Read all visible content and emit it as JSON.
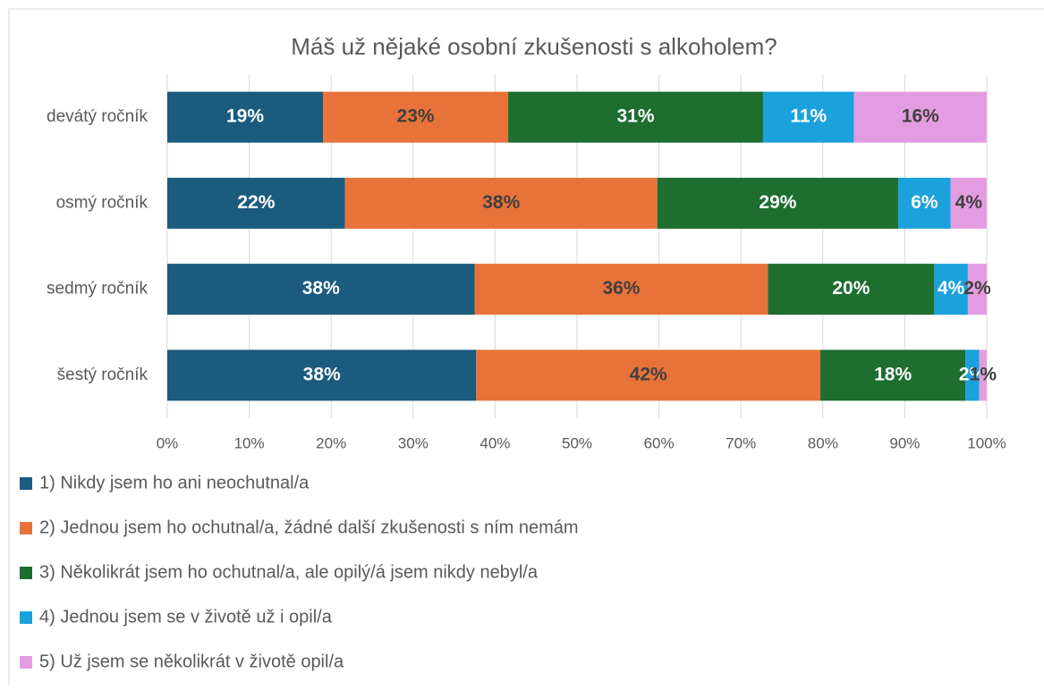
{
  "chart_data": {
    "type": "stacked_bar_horizontal",
    "title": "Máš už nějaké osobní zkušenosti s alkoholem?",
    "categories": [
      "devátý ročník",
      "osmý ročník",
      "sedmý ročník",
      "šestý ročník"
    ],
    "series": [
      {
        "name": "1) Nikdy jsem ho ani neochutnal/a",
        "color": "#1b5b7e",
        "label_color": "#ffffff",
        "values": [
          19.0,
          21.7,
          37.5,
          37.7
        ],
        "value_labels": [
          "19%",
          "22%",
          "38%",
          "38%"
        ]
      },
      {
        "name": "2) Jednou jsem ho ochutnal/a, žádné další zkušenosti s ním nemám",
        "color": "#e8733a",
        "label_color": "#404040",
        "values": [
          22.6,
          38.1,
          35.8,
          42.0
        ],
        "value_labels": [
          "23%",
          "38%",
          "36%",
          "42%"
        ]
      },
      {
        "name": "3) Několikrát jsem ho ochutnal/a, ale opilý/á jsem nikdy nebyl/a",
        "color": "#1d6e2f",
        "label_color": "#ffffff",
        "values": [
          31.1,
          29.4,
          20.3,
          17.7
        ],
        "value_labels": [
          "31%",
          "29%",
          "20%",
          "18%"
        ]
      },
      {
        "name": "4) Jednou jsem se v životě už i opil/a",
        "color": "#1ba1dc",
        "label_color": "#ffffff",
        "values": [
          11.1,
          6.4,
          4.1,
          1.7
        ],
        "value_labels": [
          "11%",
          "6%",
          "4%",
          "2%"
        ]
      },
      {
        "name": "5) Už jsem se několikrát v životě opil/a",
        "color": "#e49ce0",
        "label_color": "#404040",
        "values": [
          16.2,
          4.4,
          2.3,
          0.9
        ],
        "value_labels": [
          "16%",
          "4%",
          "2%",
          "1%"
        ]
      }
    ],
    "xlim": [
      0,
      100
    ],
    "xticks": [
      {
        "value": 0,
        "label": "0%"
      },
      {
        "value": 10,
        "label": "10%"
      },
      {
        "value": 20,
        "label": "20%"
      },
      {
        "value": 30,
        "label": "30%"
      },
      {
        "value": 40,
        "label": "40%"
      },
      {
        "value": 50,
        "label": "50%"
      },
      {
        "value": 60,
        "label": "60%"
      },
      {
        "value": 70,
        "label": "70%"
      },
      {
        "value": 80,
        "label": "80%"
      },
      {
        "value": 90,
        "label": "90%"
      },
      {
        "value": 100,
        "label": "100%"
      }
    ],
    "grid": true
  }
}
